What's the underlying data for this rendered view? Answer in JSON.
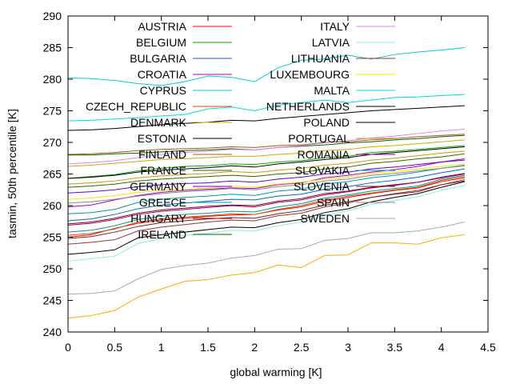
{
  "chart_data": {
    "type": "line",
    "xlabel": "global warming [K]",
    "ylabel": "tasmin, 50th percentile [K]",
    "xlim": [
      0,
      4.5
    ],
    "ylim": [
      240,
      290
    ],
    "x_ticks": [
      0,
      0.5,
      1,
      1.5,
      2,
      2.5,
      3,
      3.5,
      4,
      4.5
    ],
    "y_ticks": [
      240,
      245,
      250,
      255,
      260,
      265,
      270,
      275,
      280,
      285,
      290
    ],
    "x_tick_labels": [
      "0",
      "0.5",
      "1",
      "1.5",
      "2",
      "2.5",
      "3",
      "3.5",
      "4",
      "4.5"
    ],
    "y_tick_labels": [
      "240",
      "245",
      "250",
      "255",
      "260",
      "265",
      "270",
      "275",
      "280",
      "285",
      "290"
    ],
    "grid": false,
    "legend_placement": "top, two columns",
    "x": [
      0,
      0.25,
      0.5,
      0.75,
      1,
      1.25,
      1.5,
      1.75,
      2,
      2.25,
      2.5,
      2.75,
      3,
      3.25,
      3.5,
      3.75,
      4,
      4.25
    ],
    "series": [
      {
        "name": "AUSTRIA",
        "color": "#ff0000",
        "values": [
          255.0,
          255.4,
          256.4,
          257.2,
          257.7,
          258.0,
          258.3,
          258.5,
          258.6,
          259.3,
          259.8,
          260.7,
          261.3,
          261.9,
          262.4,
          262.8,
          263.8,
          264.4
        ]
      },
      {
        "name": "BELGIUM",
        "color": "#00aa00",
        "values": [
          264.3,
          264.6,
          264.9,
          265.5,
          265.9,
          266.2,
          266.3,
          266.6,
          266.5,
          266.9,
          267.1,
          267.6,
          267.8,
          268.4,
          268.6,
          268.9,
          269.2,
          269.5
        ]
      },
      {
        "name": "BULGARIA",
        "color": "#0066cc",
        "values": [
          257.6,
          257.9,
          258.6,
          259.5,
          260.1,
          260.4,
          260.7,
          261.0,
          260.9,
          261.5,
          261.8,
          262.6,
          263.0,
          263.6,
          264.0,
          264.5,
          265.2,
          265.8
        ]
      },
      {
        "name": "CROATIA",
        "color": "#aa00cc",
        "values": [
          259.8,
          260.1,
          260.9,
          261.6,
          262.1,
          262.4,
          262.6,
          262.8,
          262.7,
          263.3,
          263.6,
          264.4,
          264.8,
          265.3,
          265.7,
          266.2,
          266.9,
          267.4
        ]
      },
      {
        "name": "CYPRUS",
        "color": "#00cccc",
        "values": [
          280.2,
          280.1,
          279.8,
          279.3,
          279.0,
          279.6,
          280.5,
          280.3,
          279.6,
          281.8,
          283.0,
          283.2,
          283.8,
          283.2,
          283.9,
          284.3,
          284.6,
          285.0
        ]
      },
      {
        "name": "CZECH_REPUBLIC",
        "color": "#cc5500",
        "values": [
          255.3,
          255.6,
          256.3,
          257.4,
          257.9,
          258.2,
          258.4,
          258.7,
          258.6,
          259.4,
          260.0,
          260.9,
          261.5,
          262.0,
          262.5,
          262.9,
          264.0,
          264.6
        ]
      },
      {
        "name": "DENMARK",
        "color": "#ccaa00",
        "values": [
          266.2,
          266.4,
          266.7,
          267.0,
          267.3,
          267.4,
          267.6,
          267.8,
          267.8,
          268.1,
          268.3,
          268.7,
          268.9,
          269.3,
          269.5,
          269.8,
          270.1,
          270.4
        ]
      },
      {
        "name": "ESTONIA",
        "color": "#000000",
        "values": [
          252.3,
          252.6,
          253.0,
          254.9,
          255.4,
          255.8,
          256.2,
          256.6,
          256.5,
          257.3,
          257.8,
          258.9,
          259.5,
          260.6,
          261.3,
          261.9,
          262.9,
          263.8
        ]
      },
      {
        "name": "FINLAND",
        "color": "#aa5522",
        "values": [
          268.1,
          268.2,
          268.4,
          268.7,
          268.9,
          269.0,
          269.1,
          269.3,
          269.2,
          269.5,
          269.6,
          270.0,
          270.1,
          270.4,
          270.6,
          270.9,
          271.1,
          271.3
        ]
      },
      {
        "name": "FRANCE",
        "color": "#336600",
        "values": [
          262.9,
          263.1,
          263.4,
          263.9,
          264.2,
          264.4,
          264.6,
          264.8,
          264.6,
          265.0,
          265.2,
          265.8,
          266.1,
          266.7,
          267.0,
          267.4,
          267.7,
          268.2
        ]
      },
      {
        "name": "GERMANY",
        "color": "#6600cc",
        "values": [
          262.0,
          262.2,
          262.5,
          263.0,
          263.3,
          263.5,
          263.6,
          263.9,
          263.7,
          264.2,
          264.5,
          265.0,
          265.3,
          265.8,
          266.1,
          266.5,
          266.9,
          267.2
        ]
      },
      {
        "name": "GREECE",
        "color": "#0099aa",
        "values": [
          258.7,
          258.9,
          259.4,
          260.5,
          261.0,
          261.3,
          261.5,
          261.8,
          261.6,
          262.3,
          262.6,
          263.4,
          263.8,
          264.4,
          264.8,
          265.3,
          265.9,
          266.4
        ]
      },
      {
        "name": "HUNGARY",
        "color": "#990000",
        "values": [
          257.1,
          257.4,
          258.0,
          258.8,
          259.3,
          259.6,
          259.9,
          260.1,
          260.0,
          260.7,
          261.1,
          261.9,
          262.3,
          262.9,
          263.3,
          263.7,
          264.5,
          265.1
        ]
      },
      {
        "name": "IRELAND",
        "color": "#006600",
        "values": [
          268.0,
          268.0,
          268.2,
          268.3,
          268.5,
          268.7,
          268.8,
          269.0,
          268.8,
          269.2,
          269.4,
          269.6,
          269.9,
          270.1,
          270.4,
          270.6,
          270.9,
          271.1
        ]
      },
      {
        "name": "ITALY",
        "color": "#dd88ee",
        "values": [
          266.6,
          266.8,
          267.1,
          267.6,
          268.1,
          268.4,
          268.6,
          268.9,
          268.8,
          269.2,
          269.5,
          269.9,
          270.3,
          270.7,
          271.0,
          271.4,
          271.8,
          272.1
        ]
      },
      {
        "name": "LATVIA",
        "color": "#88eedd",
        "values": [
          251.2,
          251.6,
          252.0,
          254.0,
          254.8,
          255.3,
          255.6,
          256.1,
          256.0,
          256.8,
          257.4,
          258.4,
          259.2,
          260.2,
          260.8,
          261.4,
          262.4,
          263.2
        ]
      },
      {
        "name": "LITHUANIA",
        "color": "#993333",
        "values": [
          253.9,
          254.2,
          254.6,
          256.0,
          256.6,
          257.0,
          257.4,
          257.7,
          257.6,
          258.4,
          258.8,
          259.8,
          260.4,
          261.3,
          261.9,
          262.4,
          263.3,
          264.1
        ]
      },
      {
        "name": "LUXEMBOURG",
        "color": "#ffdd00",
        "values": [
          261.0,
          261.2,
          261.6,
          262.1,
          262.4,
          262.6,
          262.8,
          263.1,
          262.9,
          263.4,
          263.7,
          264.2,
          264.5,
          265.1,
          265.4,
          265.8,
          266.2,
          266.6
        ]
      },
      {
        "name": "MALTA",
        "color": "#00dddd",
        "values": [
          273.4,
          273.5,
          273.7,
          273.9,
          274.2,
          274.4,
          275.3,
          275.6,
          275.0,
          275.9,
          276.3,
          276.7,
          276.3,
          276.7,
          277.1,
          277.2,
          277.4,
          277.6
        ]
      },
      {
        "name": "NETHERLANDS",
        "color": "#000000",
        "values": [
          271.9,
          272.0,
          272.2,
          272.5,
          272.8,
          273.0,
          273.2,
          273.5,
          273.4,
          273.8,
          274.1,
          274.4,
          274.7,
          275.0,
          275.2,
          275.4,
          275.6,
          275.8
        ]
      },
      {
        "name": "POLAND",
        "color": "#000000",
        "values": [
          264.3,
          264.5,
          264.8,
          265.3,
          265.6,
          265.8,
          266.0,
          266.3,
          266.1,
          266.6,
          266.9,
          267.3,
          267.6,
          268.1,
          268.4,
          268.7,
          269.0,
          269.3
        ]
      },
      {
        "name": "PORTUGAL",
        "color": "#cc9900",
        "values": [
          263.4,
          263.6,
          263.9,
          264.4,
          264.7,
          264.9,
          265.1,
          265.4,
          265.2,
          265.6,
          265.9,
          266.4,
          266.7,
          267.2,
          267.5,
          267.9,
          268.3,
          268.6
        ]
      },
      {
        "name": "ROMANIA",
        "color": "#880088",
        "values": [
          256.9,
          257.2,
          257.8,
          258.6,
          259.1,
          259.4,
          259.7,
          260.0,
          259.8,
          260.5,
          260.9,
          261.7,
          262.2,
          262.8,
          263.2,
          263.7,
          264.4,
          265.0
        ]
      },
      {
        "name": "SLOVAKIA",
        "color": "#009999",
        "values": [
          255.8,
          256.1,
          256.8,
          257.8,
          258.3,
          258.6,
          258.8,
          259.1,
          259.0,
          259.8,
          260.3,
          261.2,
          261.7,
          262.3,
          262.7,
          263.1,
          264.2,
          264.8
        ]
      },
      {
        "name": "SLOVENIA",
        "color": "#772222",
        "values": [
          254.8,
          255.1,
          255.8,
          256.7,
          257.3,
          257.6,
          257.9,
          258.1,
          258.0,
          258.7,
          259.2,
          260.1,
          260.6,
          261.3,
          261.8,
          262.2,
          263.3,
          263.9
        ]
      },
      {
        "name": "SPAIN",
        "color": "#888888",
        "values": [
          260.4,
          260.6,
          261.0,
          261.5,
          261.9,
          262.2,
          262.4,
          262.7,
          262.5,
          263.0,
          263.3,
          263.9,
          264.2,
          264.8,
          265.1,
          265.5,
          265.9,
          266.3
        ]
      },
      {
        "name": "SWEDEN",
        "color": "#aaaaaa",
        "values": [
          246.0,
          246.1,
          246.5,
          248.4,
          249.9,
          250.5,
          250.9,
          251.7,
          252.1,
          253.1,
          253.2,
          254.5,
          254.8,
          255.7,
          255.7,
          256.0,
          256.6,
          257.4
        ]
      },
      {
        "name": "",
        "color": "#ffaa00",
        "values": [
          242.2,
          242.6,
          243.4,
          245.5,
          246.8,
          248.0,
          248.3,
          249.0,
          249.4,
          250.6,
          250.2,
          252.1,
          252.2,
          254.1,
          254.1,
          253.9,
          254.9,
          255.4
        ]
      }
    ]
  }
}
